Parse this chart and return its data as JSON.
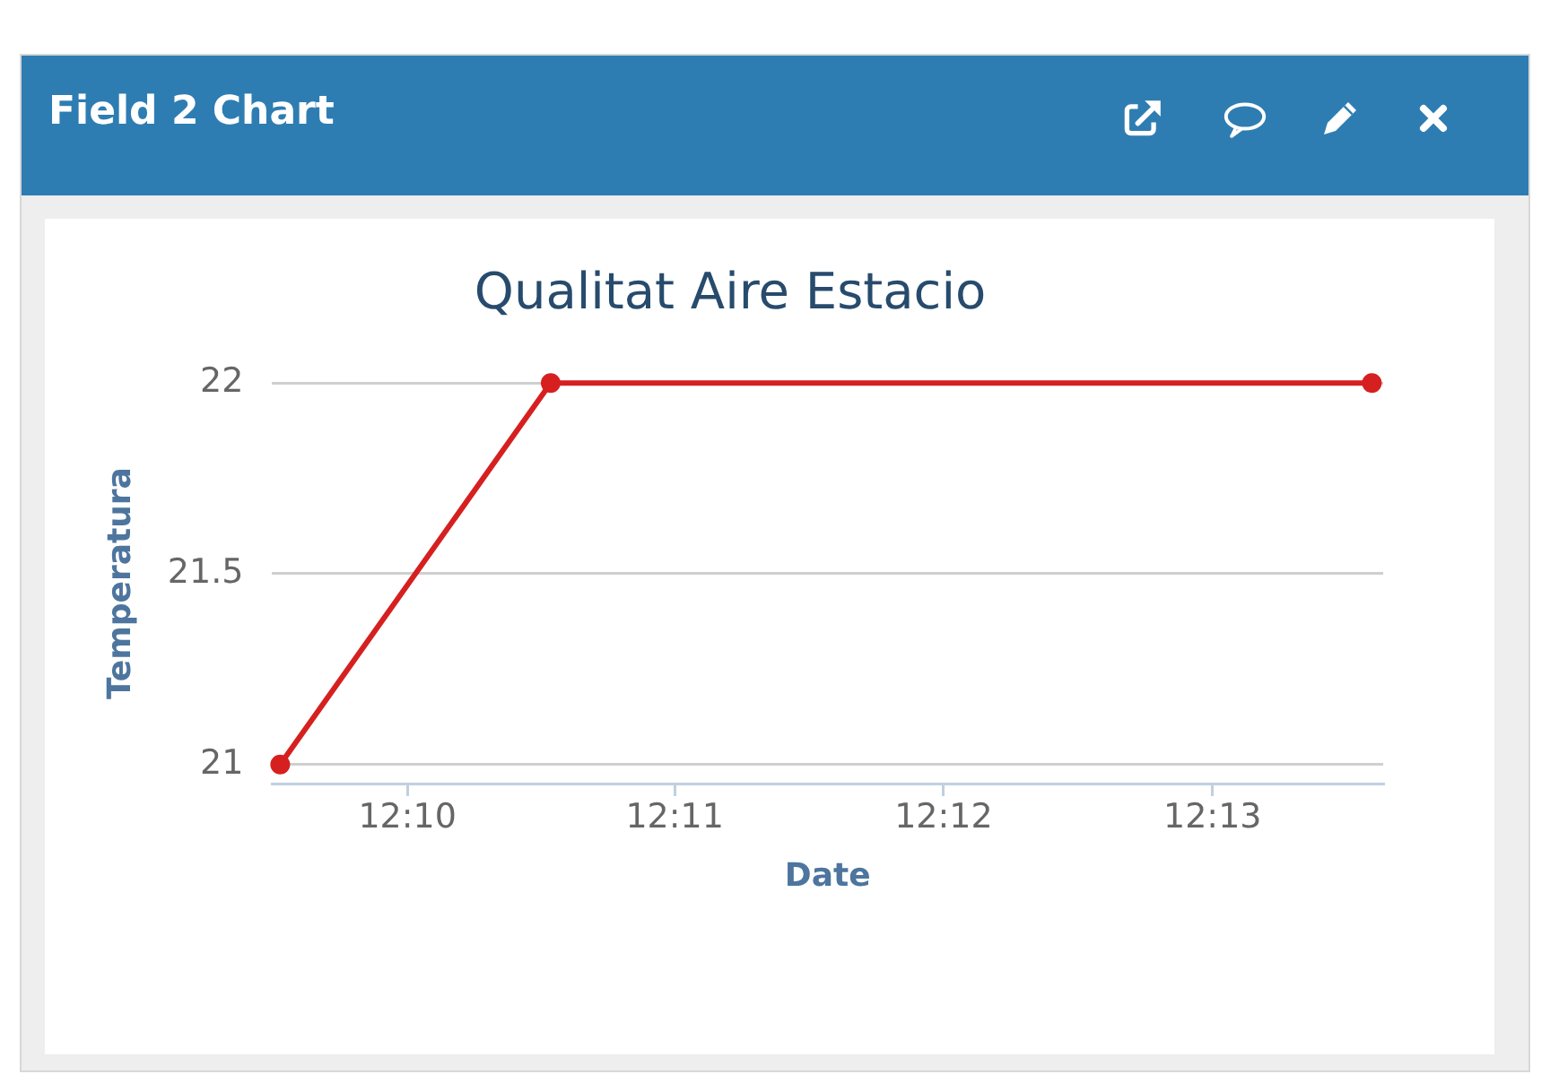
{
  "chart_data": {
    "type": "line",
    "title": "Qualitat Aire Estacio",
    "annotations": [
      "Field 2 Chart"
    ],
    "xlabel": "Date",
    "ylabel": "Temperatura",
    "x": [
      12.1588,
      12.1756,
      12.2266
    ],
    "series": [
      {
        "color": "#d62020",
        "values": [
          21,
          22,
          22
        ]
      }
    ],
    "xlim": [
      12.1583,
      12.2273
    ],
    "xticks": [
      {
        "value": 12.1667,
        "label": "12:10"
      },
      {
        "value": 12.1833,
        "label": "12:11"
      },
      {
        "value": 12.2,
        "label": "12:12"
      },
      {
        "value": 12.2167,
        "label": "12:13"
      }
    ],
    "ylim": [
      20.95,
      22
    ],
    "yticks": [
      21,
      21.5,
      22
    ],
    "grid": "y",
    "marker": "circle"
  }
}
